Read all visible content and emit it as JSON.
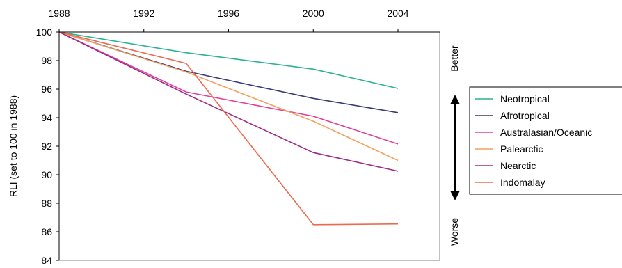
{
  "chart_data": {
    "type": "line",
    "title": "",
    "xlabel": "",
    "ylabel": "RLI (set to 100 in 1988)",
    "x": [
      1988,
      1994,
      2000,
      2004
    ],
    "xlim": [
      1988,
      2004
    ],
    "ylim": [
      84,
      100
    ],
    "x_ticks": [
      "1988",
      "1992",
      "1996",
      "2000",
      "2004"
    ],
    "x_tick_values": [
      1988,
      1992,
      1996,
      2000,
      2004
    ],
    "y_ticks": [
      "100",
      "98",
      "96",
      "94",
      "92",
      "90",
      "88",
      "86",
      "84"
    ],
    "y_tick_values": [
      100,
      98,
      96,
      94,
      92,
      90,
      88,
      86,
      84
    ],
    "x_axis_position": "top",
    "grid": false,
    "legend_position": "right",
    "series": [
      {
        "name": "Neotropical",
        "color": "#2ab392",
        "values": [
          100,
          98.55,
          97.4,
          96.05
        ]
      },
      {
        "name": "Afrotropical",
        "color": "#3a3a78",
        "values": [
          100,
          97.25,
          95.35,
          94.35
        ]
      },
      {
        "name": "Australasian/Oceanic",
        "color": "#e0409a",
        "values": [
          100,
          95.8,
          94.1,
          92.15
        ]
      },
      {
        "name": "Palearctic",
        "color": "#f4a05e",
        "values": [
          100,
          97.2,
          93.75,
          91.0
        ]
      },
      {
        "name": "Nearctic",
        "color": "#9c2a88",
        "values": [
          100,
          95.65,
          91.55,
          90.25
        ]
      },
      {
        "name": "Indomalay",
        "color": "#ec6a50",
        "values": [
          100,
          97.8,
          86.5,
          86.55
        ]
      }
    ],
    "indicator": {
      "top_label": "Better",
      "bottom_label": "Worse"
    }
  }
}
